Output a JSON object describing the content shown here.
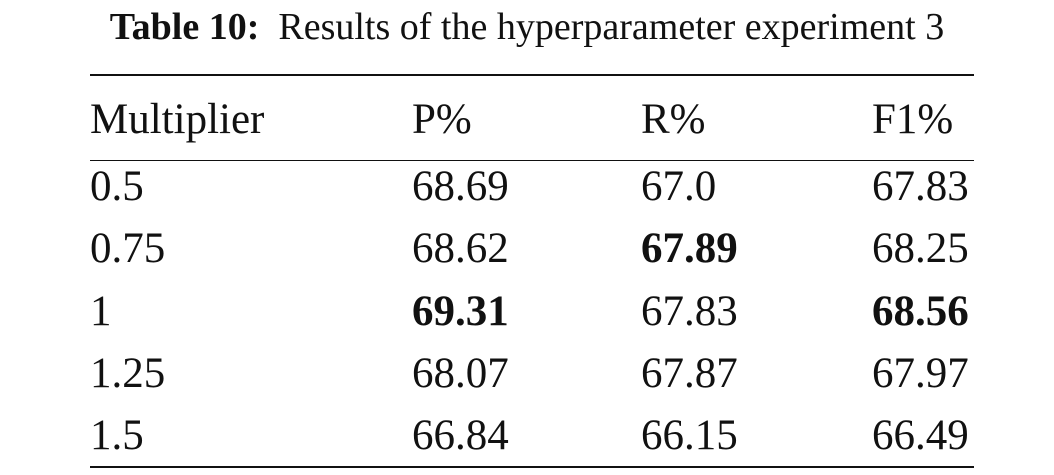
{
  "caption": {
    "label": "Table 10:",
    "text": "Results of the hyperparameter experiment 3"
  },
  "table": {
    "headers": [
      "Multiplier",
      "P%",
      "R%",
      "F1%"
    ],
    "rows": [
      [
        "0.5",
        "68.69",
        "67.0",
        "67.83"
      ],
      [
        "0.75",
        "68.62",
        "67.89",
        "68.25"
      ],
      [
        "1",
        "69.31",
        "67.83",
        "68.56"
      ],
      [
        "1.25",
        "68.07",
        "67.87",
        "67.97"
      ],
      [
        "1.5",
        "66.84",
        "66.15",
        "66.49"
      ]
    ],
    "bold_cells": [
      {
        "row": 1,
        "col": 2
      },
      {
        "row": 2,
        "col": 1
      },
      {
        "row": 2,
        "col": 3
      }
    ]
  }
}
